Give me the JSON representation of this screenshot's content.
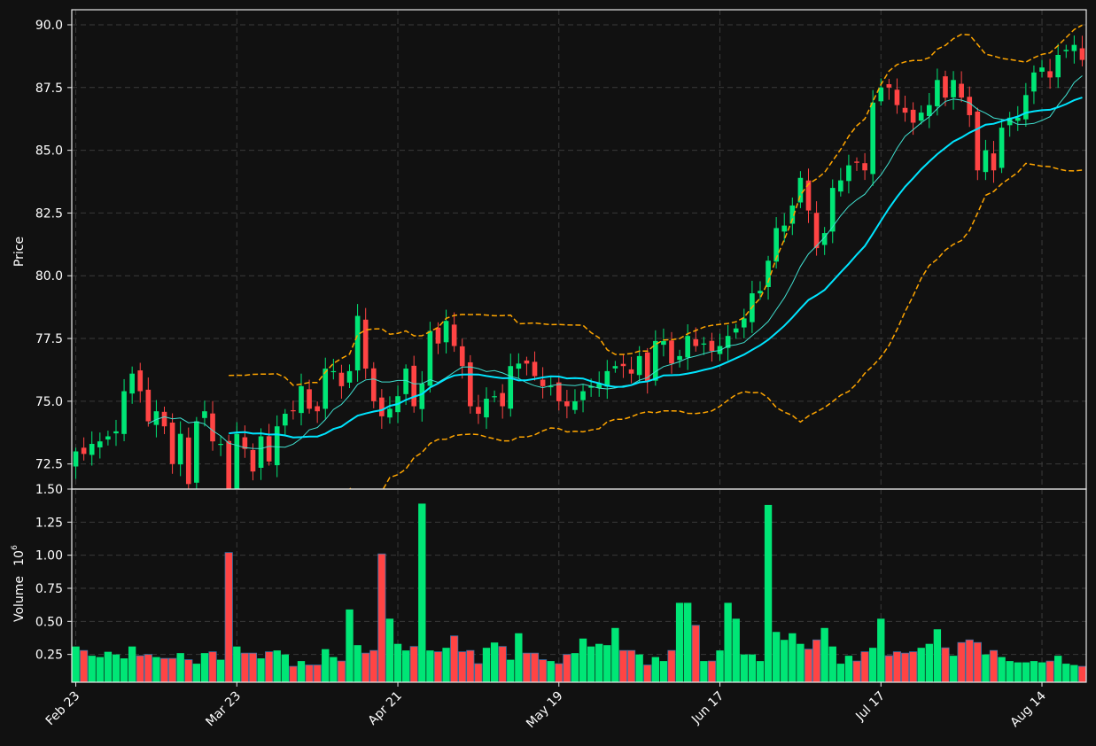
{
  "chart_data": {
    "type": "candlestick",
    "price_axis": {
      "label": "Price",
      "ticks": [
        72.5,
        75.0,
        77.5,
        80.0,
        82.5,
        85.0,
        87.5,
        90.0
      ],
      "ylim": [
        71.5,
        90.6
      ]
    },
    "volume_axis": {
      "label": "Volume",
      "exponent": "6",
      "ticks": [
        0.25,
        0.5,
        0.75,
        1.0,
        1.25,
        1.5
      ],
      "ylim": [
        0.04,
        1.5
      ]
    },
    "x_tick_labels": [
      {
        "label": "Feb 23",
        "index": 0
      },
      {
        "label": "Mar 23",
        "index": 20
      },
      {
        "label": "Apr 21",
        "index": 40
      },
      {
        "label": "May 19",
        "index": 60
      },
      {
        "label": "Jun 17",
        "index": 80
      },
      {
        "label": "Jul 17",
        "index": 100
      },
      {
        "label": "Aug 14",
        "index": 120
      }
    ],
    "grid": true,
    "colors": {
      "up": "#00e676",
      "down": "#ff4444",
      "ma_fast": "#40e0d0",
      "ma_slow": "#00e5ff",
      "bands": "#ffa500",
      "background": "#111111"
    },
    "closes": [
      73.0,
      72.9,
      73.3,
      73.4,
      73.6,
      73.8,
      75.4,
      76.1,
      75.4,
      74.2,
      74.6,
      74.0,
      72.5,
      73.7,
      71.7,
      74.2,
      74.6,
      73.4,
      73.3,
      71.3,
      73.7,
      73.1,
      72.2,
      73.6,
      72.6,
      74.0,
      74.5,
      74.6,
      75.6,
      74.7,
      74.6,
      76.3,
      76.2,
      75.6,
      76.2,
      78.4,
      76.3,
      75.0,
      74.4,
      74.7,
      75.2,
      76.3,
      74.8,
      75.7,
      77.8,
      77.3,
      78.2,
      77.2,
      76.4,
      74.8,
      74.5,
      75.1,
      75.2,
      74.8,
      76.4,
      76.5,
      76.5,
      76.0,
      75.6,
      75.6,
      75.0,
      74.8,
      75.0,
      75.4,
      75.6,
      75.7,
      76.2,
      76.4,
      76.4,
      76.1,
      76.8,
      75.8,
      77.4,
      77.4,
      76.5,
      76.8,
      77.6,
      77.2,
      77.3,
      77.0,
      77.2,
      77.6,
      77.9,
      78.3,
      79.3,
      79.4,
      80.6,
      81.9,
      82.0,
      82.8,
      83.9,
      82.6,
      81.1,
      81.7,
      83.5,
      83.8,
      84.4,
      84.5,
      84.2,
      86.9,
      87.5,
      87.5,
      86.8,
      86.5,
      86.1,
      86.5,
      86.8,
      87.8,
      87.1,
      87.8,
      87.1,
      86.4,
      84.2,
      85.0,
      84.2,
      85.9,
      86.3,
      86.3,
      87.2,
      88.1,
      88.3,
      87.9,
      88.8,
      89.0,
      89.2,
      88.6
    ],
    "volumes": [
      0.31,
      0.28,
      0.24,
      0.23,
      0.27,
      0.25,
      0.22,
      0.31,
      0.24,
      0.25,
      0.23,
      0.22,
      0.22,
      0.26,
      0.21,
      0.18,
      0.26,
      0.27,
      0.21,
      1.02,
      0.31,
      0.26,
      0.26,
      0.22,
      0.27,
      0.28,
      0.25,
      0.16,
      0.2,
      0.17,
      0.17,
      0.29,
      0.23,
      0.2,
      0.59,
      0.32,
      0.26,
      0.28,
      1.01,
      0.52,
      0.33,
      0.28,
      0.31,
      1.39,
      0.28,
      0.27,
      0.3,
      0.39,
      0.27,
      0.28,
      0.18,
      0.3,
      0.34,
      0.31,
      0.21,
      0.41,
      0.26,
      0.26,
      0.21,
      0.2,
      0.18,
      0.25,
      0.26,
      0.37,
      0.31,
      0.33,
      0.32,
      0.45,
      0.28,
      0.28,
      0.25,
      0.17,
      0.23,
      0.2,
      0.28,
      0.64,
      0.64,
      0.47,
      0.2,
      0.2,
      0.28,
      0.64,
      0.52,
      0.25,
      0.25,
      0.2,
      1.38,
      0.42,
      0.36,
      0.41,
      0.33,
      0.29,
      0.36,
      0.45,
      0.31,
      0.18,
      0.24,
      0.2,
      0.27,
      0.3,
      0.52,
      0.24,
      0.27,
      0.26,
      0.27,
      0.3,
      0.33,
      0.44,
      0.3,
      0.24,
      0.34,
      0.36,
      0.34,
      0.25,
      0.28,
      0.23,
      0.2,
      0.19,
      0.19,
      0.2,
      0.19,
      0.2,
      0.24,
      0.18,
      0.17,
      0.16
    ]
  }
}
